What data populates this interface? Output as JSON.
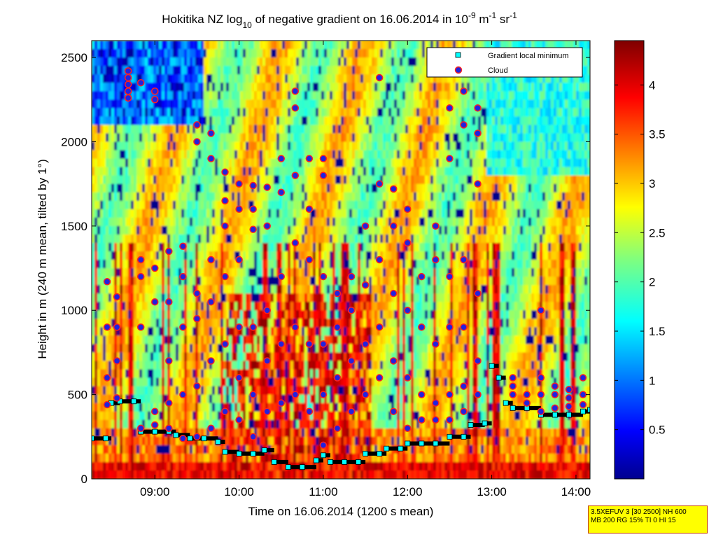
{
  "title": {
    "prefix": "Hokitika NZ log",
    "sub": "10",
    "middle": " of negative gradient on 16.06.2014 in 10",
    "sup1": "-9",
    "unit1": " m",
    "sup2": "-1",
    "unit2": " sr",
    "sup3": "-1"
  },
  "colors": {
    "low": "#00008f",
    "mid": "#ffff00",
    "high": "#7f0000",
    "cloud_marker_fill": "#2222dd",
    "cloud_marker_edge": "#ff2020",
    "minimum_marker": "#00ffff"
  },
  "chart_data": {
    "type": "heatmap",
    "title": "Hokitika NZ log10 of negative gradient on 16.06.2014 in 10^-9 m^-1 sr^-1",
    "xlabel": "Time on 16.06.2014 (1200 s mean)",
    "ylabel": "Height in m (240 m mean, tilted by 1°)",
    "xlim": [
      "08:15",
      "14:10"
    ],
    "ylim": [
      0,
      2600
    ],
    "x_ticks": [
      "09:00",
      "10:00",
      "11:00",
      "12:00",
      "13:00",
      "14:00"
    ],
    "y_ticks": [
      0,
      500,
      1000,
      1500,
      2000,
      2500
    ],
    "colorbar": {
      "colormap": "jet",
      "range": [
        0,
        4.45
      ],
      "ticks": [
        0.5,
        1,
        1.5,
        2,
        2.5,
        3,
        3.5,
        4
      ]
    },
    "legend": {
      "placement": "top-right",
      "entries": [
        "Gradient local minimum",
        "Cloud"
      ]
    },
    "series": [
      {
        "name": "Gradient local minimum",
        "marker": "square",
        "points": [
          [
            "08:15",
            240
          ],
          [
            "08:25",
            240
          ],
          [
            "08:29",
            450
          ],
          [
            "08:35",
            460
          ],
          [
            "08:45",
            460
          ],
          [
            "08:50",
            280
          ],
          [
            "09:00",
            280
          ],
          [
            "09:10",
            280
          ],
          [
            "09:15",
            260
          ],
          [
            "09:25",
            240
          ],
          [
            "09:35",
            240
          ],
          [
            "09:45",
            220
          ],
          [
            "09:50",
            160
          ],
          [
            "10:00",
            150
          ],
          [
            "10:10",
            150
          ],
          [
            "10:18",
            170
          ],
          [
            "10:25",
            100
          ],
          [
            "10:35",
            70
          ],
          [
            "10:45",
            70
          ],
          [
            "10:55",
            110
          ],
          [
            "11:00",
            140
          ],
          [
            "11:05",
            100
          ],
          [
            "11:15",
            100
          ],
          [
            "11:25",
            100
          ],
          [
            "11:30",
            150
          ],
          [
            "11:40",
            150
          ],
          [
            "11:45",
            180
          ],
          [
            "11:55",
            180
          ],
          [
            "12:00",
            210
          ],
          [
            "12:10",
            210
          ],
          [
            "12:20",
            210
          ],
          [
            "12:30",
            250
          ],
          [
            "12:40",
            250
          ],
          [
            "12:45",
            320
          ],
          [
            "12:55",
            330
          ],
          [
            "13:00",
            670
          ],
          [
            "13:05",
            600
          ],
          [
            "13:10",
            450
          ],
          [
            "13:15",
            420
          ],
          [
            "13:25",
            420
          ],
          [
            "13:35",
            380
          ],
          [
            "13:45",
            380
          ],
          [
            "13:55",
            380
          ],
          [
            "14:05",
            400
          ],
          [
            "14:10",
            410
          ]
        ]
      },
      {
        "name": "Cloud",
        "marker": "circle",
        "clusters": [
          {
            "time": "08:26",
            "heights": [
              440,
              600,
              900,
              1170
            ]
          },
          {
            "time": "08:33",
            "heights": [
              480,
              700,
              900,
              1080
            ]
          },
          {
            "time": "08:41",
            "heights": [
              2420,
              2380,
              2340,
              2300,
              2260
            ]
          },
          {
            "time": "08:50",
            "heights": [
              300,
              900,
              1200,
              1300,
              2350
            ]
          },
          {
            "time": "09:00",
            "heights": [
              320,
              400,
              1050,
              1250,
              2300,
              2250
            ]
          },
          {
            "time": "09:10",
            "heights": [
              300,
              450,
              700,
              1050,
              1350
            ]
          },
          {
            "time": "09:20",
            "heights": [
              240,
              500,
              900,
              1200,
              1380
            ]
          },
          {
            "time": "09:30",
            "heights": [
              250,
              550,
              950,
              1100,
              2100,
              2000
            ]
          },
          {
            "time": "09:40",
            "heights": [
              300,
              700,
              1050,
              1300,
              2050,
              1900
            ]
          },
          {
            "time": "09:50",
            "heights": [
              400,
              800,
              1200,
              1500,
              1820,
              1650
            ]
          },
          {
            "time": "10:00",
            "heights": [
              350,
              600,
              900,
              1300,
              1750,
              1600
            ]
          },
          {
            "time": "10:10",
            "heights": [
              250,
              500,
              900,
              1600,
              1740,
              1480
            ]
          },
          {
            "time": "10:20",
            "heights": [
              400,
              700,
              1000,
              1500,
              1730
            ]
          },
          {
            "time": "10:30",
            "heights": [
              450,
              800,
              1200,
              1700,
              1900
            ]
          },
          {
            "time": "10:40",
            "heights": [
              500,
              900,
              1400,
              1800,
              2200,
              2300
            ]
          },
          {
            "time": "10:50",
            "heights": [
              400,
              800,
              1300,
              1600,
              1900
            ]
          },
          {
            "time": "11:00",
            "heights": [
              200,
              500,
              800,
              1200,
              1800,
              1900
            ]
          },
          {
            "time": "11:10",
            "heights": [
              300,
              600,
              900,
              1100
            ]
          },
          {
            "time": "11:20",
            "heights": [
              400,
              700,
              1000,
              1200
            ]
          },
          {
            "time": "11:30",
            "heights": [
              500,
              800,
              1150,
              1500
            ]
          },
          {
            "time": "11:40",
            "heights": [
              600,
              900,
              1300,
              1750,
              2380
            ]
          },
          {
            "time": "11:50",
            "heights": [
              400,
              700,
              1100,
              1500,
              1720
            ]
          },
          {
            "time": "12:00",
            "heights": [
              300,
              600,
              1000,
              1400,
              1600
            ]
          },
          {
            "time": "12:10",
            "heights": [
              350,
              500,
              900,
              1200
            ]
          },
          {
            "time": "12:20",
            "heights": [
              350,
              450,
              800,
              1300,
              1500
            ]
          },
          {
            "time": "12:30",
            "heights": [
              350,
              500,
              900,
              1200,
              2200,
              1900
            ]
          },
          {
            "time": "12:40",
            "heights": [
              400,
              550,
              900,
              1300,
              2300,
              2100
            ]
          },
          {
            "time": "12:50",
            "heights": [
              500,
              700,
              1100,
              1750,
              2200,
              2050
            ]
          },
          {
            "time": "13:15",
            "heights": [
              500,
              550,
              600
            ]
          },
          {
            "time": "13:25",
            "heights": [
              450,
              500
            ]
          },
          {
            "time": "13:35",
            "heights": [
              400,
              500,
              600,
              1000
            ]
          },
          {
            "time": "13:45",
            "heights": [
              420,
              500,
              550
            ]
          },
          {
            "time": "13:55",
            "heights": [
              430,
              480,
              530
            ]
          },
          {
            "time": "14:05",
            "heights": [
              440,
              500,
              600
            ]
          }
        ]
      }
    ]
  },
  "info_box": {
    "line1": "3.5XEFUV 3 [30 2500] NH 600",
    "line2": "MB 200 RG 15% TI 0 HI 15"
  }
}
